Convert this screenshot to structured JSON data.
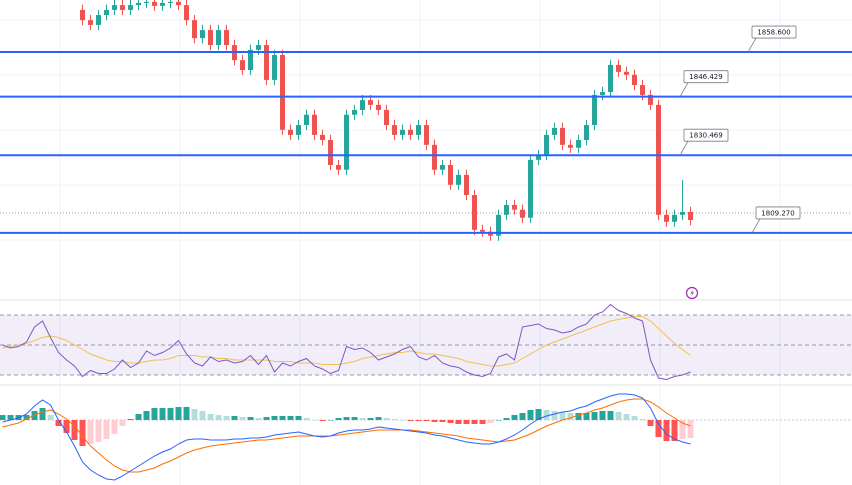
{
  "chart_data": {
    "type": "candlestick",
    "open": [
      null,
      null,
      null,
      null,
      null,
      null,
      null,
      null,
      null,
      null,
      1870.1,
      1867.3,
      1866.0,
      1868.7,
      1870.1,
      1871.4,
      1870.1,
      1871.4,
      1872.0,
      1872.3,
      1871.2,
      1872.0,
      1872.3,
      1871.4,
      1867.3,
      1862.4,
      1864.6,
      1860.5,
      1864.6,
      1860.5,
      1856.4,
      1853.7,
      1859.2,
      1860.5,
      1851.0,
      1857.8,
      1837.4,
      1836.0,
      1838.7,
      1841.5,
      1836.0,
      1834.6,
      1827.8,
      1826.5,
      1841.5,
      1842.8,
      1845.5,
      1844.2,
      1842.8,
      1838.7,
      1836.0,
      1837.4,
      1836.0,
      1838.7,
      1833.3,
      1826.5,
      1827.8,
      1822.4,
      1825.1,
      1819.6,
      1810.1,
      1809.6,
      1808.5,
      1814.2,
      1816.9,
      1815.6,
      1813.4,
      1829.2,
      1830.5,
      1836.0,
      1837.9,
      1833.3,
      1832.5,
      1834.6,
      1838.7,
      1846.9,
      1847.7,
      1855.1,
      1853.2,
      1852.4,
      1849.6,
      1846.9,
      1844.2,
      1814.2,
      1812.3,
      1814.2,
      1815.0
    ],
    "high": [
      null,
      null,
      null,
      null,
      null,
      null,
      null,
      null,
      null,
      null,
      1871.5,
      1868.7,
      1870.1,
      1871.5,
      1872.8,
      1872.8,
      1872.8,
      1873.4,
      1873.7,
      1873.7,
      1873.4,
      1873.7,
      1873.7,
      1872.8,
      1868.7,
      1866.0,
      1866.0,
      1866.0,
      1866.0,
      1861.9,
      1857.8,
      1860.6,
      1861.9,
      1861.9,
      1859.2,
      1859.2,
      1838.8,
      1840.1,
      1842.9,
      1842.9,
      1837.4,
      1836.0,
      1829.2,
      1842.9,
      1844.2,
      1846.9,
      1846.9,
      1845.6,
      1844.2,
      1840.1,
      1838.8,
      1838.8,
      1840.1,
      1840.1,
      1834.7,
      1829.2,
      1829.2,
      1826.5,
      1826.5,
      1821.0,
      1811.5,
      1811.0,
      1815.6,
      1818.3,
      1818.3,
      1817.0,
      1830.6,
      1831.9,
      1837.4,
      1839.3,
      1839.3,
      1834.7,
      1836.0,
      1840.1,
      1848.3,
      1849.1,
      1856.5,
      1856.5,
      1854.6,
      1853.8,
      1851.0,
      1848.3,
      1845.6,
      1815.6,
      1815.6,
      1823.7,
      1816.4
    ],
    "low": [
      null,
      null,
      null,
      null,
      null,
      null,
      null,
      null,
      null,
      null,
      1865.9,
      1864.6,
      1864.6,
      1867.3,
      1868.7,
      1868.7,
      1868.7,
      1870.0,
      1870.6,
      1869.8,
      1869.8,
      1870.6,
      1870.0,
      1865.9,
      1861.0,
      1861.0,
      1859.1,
      1859.1,
      1859.1,
      1855.0,
      1852.3,
      1852.3,
      1857.8,
      1849.6,
      1849.6,
      1836.0,
      1834.6,
      1834.6,
      1837.3,
      1834.6,
      1833.2,
      1826.4,
      1825.1,
      1825.1,
      1840.1,
      1841.4,
      1842.8,
      1841.4,
      1837.3,
      1834.6,
      1834.6,
      1834.6,
      1834.6,
      1831.9,
      1825.1,
      1825.1,
      1821.0,
      1821.0,
      1818.2,
      1808.7,
      1808.2,
      1807.1,
      1807.1,
      1812.8,
      1814.2,
      1812.0,
      1812.0,
      1827.8,
      1829.1,
      1834.6,
      1831.9,
      1831.1,
      1831.1,
      1833.2,
      1837.3,
      1845.5,
      1846.3,
      1851.8,
      1851.0,
      1848.2,
      1845.5,
      1842.8,
      1812.8,
      1810.9,
      1810.9,
      1812.8,
      1811.4
    ],
    "close": [
      null,
      null,
      null,
      null,
      null,
      null,
      null,
      null,
      null,
      null,
      1867.3,
      1866.0,
      1868.7,
      1870.1,
      1871.4,
      1870.1,
      1871.4,
      1872.0,
      1872.3,
      1871.2,
      1872.0,
      1872.3,
      1871.4,
      1867.3,
      1862.4,
      1864.6,
      1860.5,
      1864.6,
      1860.5,
      1856.4,
      1853.7,
      1859.2,
      1860.5,
      1851.0,
      1857.8,
      1837.4,
      1836.0,
      1838.7,
      1841.5,
      1836.0,
      1834.6,
      1827.8,
      1826.5,
      1841.5,
      1842.8,
      1845.5,
      1844.2,
      1842.8,
      1838.7,
      1836.0,
      1837.4,
      1836.0,
      1838.7,
      1833.3,
      1826.5,
      1827.8,
      1822.4,
      1825.1,
      1819.6,
      1810.1,
      1809.6,
      1808.5,
      1814.2,
      1816.9,
      1815.6,
      1813.4,
      1829.2,
      1830.5,
      1836.0,
      1837.9,
      1833.3,
      1832.5,
      1834.6,
      1838.7,
      1846.9,
      1847.7,
      1855.1,
      1853.2,
      1852.4,
      1849.6,
      1846.9,
      1844.2,
      1814.2,
      1812.3,
      1814.2,
      1815.0,
      1812.8
    ],
    "up_color": "#26a69a",
    "down_color": "#ef5350",
    "ylim": [
      1793.7,
      1872.8
    ],
    "levels": [
      {
        "value": 1858.6,
        "label": "1858.600"
      },
      {
        "value": 1846.429,
        "label": "1846.429"
      },
      {
        "value": 1830.469,
        "label": "1830.469"
      },
      {
        "value": 1809.27,
        "label": "1809.270"
      }
    ],
    "level_color": "#2962ff",
    "price_line": 1814.7,
    "rsi": {
      "values": [
        50,
        48,
        49,
        52,
        62,
        66,
        55,
        45,
        40,
        36,
        29,
        33,
        31,
        31,
        34,
        40,
        35,
        38,
        46,
        43,
        45,
        48,
        53,
        44,
        38,
        36,
        42,
        39,
        40,
        38,
        39,
        43,
        37,
        43,
        32,
        38,
        36,
        39,
        41,
        36,
        34,
        31,
        33,
        49,
        47,
        48,
        45,
        40,
        42,
        44,
        47,
        49,
        42,
        40,
        43,
        38,
        36,
        35,
        32,
        30,
        29,
        31,
        42,
        44,
        40,
        62,
        63,
        64,
        61,
        60,
        58,
        59,
        62,
        64,
        70,
        72,
        77,
        73,
        71,
        68,
        66,
        40,
        28,
        27,
        29,
        30,
        32
      ],
      "ma": [
        48,
        49,
        50,
        51,
        53,
        55,
        56,
        55,
        53,
        50,
        47,
        44,
        42,
        40,
        39,
        39,
        38,
        38,
        39,
        40,
        40,
        41,
        43,
        43,
        43,
        42,
        42,
        41,
        41,
        40,
        40,
        40,
        40,
        40,
        39,
        39,
        39,
        38,
        38,
        38,
        37,
        37,
        37,
        38,
        39,
        41,
        42,
        43,
        44,
        45,
        45,
        46,
        45,
        44,
        44,
        43,
        42,
        41,
        39,
        38,
        37,
        36,
        36,
        37,
        38,
        41,
        44,
        47,
        50,
        52,
        54,
        56,
        58,
        60,
        62,
        64,
        66,
        67,
        68,
        69,
        69,
        66,
        61,
        56,
        51,
        47,
        43
      ],
      "color": "#7e57c2",
      "ma_color": "#f2c14e",
      "ylim": [
        20,
        80
      ],
      "bands": [
        30,
        50,
        70
      ]
    },
    "macd": {
      "line": [
        -0.2,
        0,
        0.2,
        0.6,
        1.4,
        2.0,
        1.5,
        0,
        -1.2,
        -2.6,
        -4.2,
        -5.0,
        -5.5,
        -5.9,
        -6.0,
        -5.6,
        -5.1,
        -4.6,
        -4.1,
        -3.6,
        -3.2,
        -2.9,
        -2.4,
        -2.0,
        -1.9,
        -1.9,
        -2.0,
        -2.0,
        -2.0,
        -1.9,
        -1.9,
        -1.8,
        -1.8,
        -1.7,
        -1.5,
        -1.4,
        -1.3,
        -1.2,
        -1.4,
        -1.6,
        -1.7,
        -1.6,
        -1.3,
        -1.1,
        -1.0,
        -1.0,
        -0.9,
        -0.7,
        -0.8,
        -0.9,
        -1.0,
        -1.1,
        -1.2,
        -1.3,
        -1.5,
        -1.6,
        -1.8,
        -2.0,
        -2.2,
        -2.3,
        -2.4,
        -2.4,
        -2.2,
        -1.9,
        -1.5,
        -1.0,
        -0.4,
        0.1,
        0.4,
        0.6,
        0.8,
        0.9,
        1.2,
        1.4,
        1.8,
        2.1,
        2.4,
        2.6,
        2.6,
        2.5,
        2.2,
        1.2,
        -0.4,
        -1.4,
        -1.9,
        -2.2,
        -2.4
      ],
      "signal": [
        -0.7,
        -0.5,
        -0.3,
        0.1,
        0.5,
        0.8,
        1.0,
        0.6,
        0.1,
        -0.6,
        -1.6,
        -2.6,
        -3.3,
        -4.0,
        -4.6,
        -5.0,
        -5.2,
        -5.2,
        -5.0,
        -4.8,
        -4.4,
        -4.1,
        -3.7,
        -3.3,
        -3.0,
        -2.8,
        -2.6,
        -2.5,
        -2.4,
        -2.3,
        -2.2,
        -2.1,
        -2.0,
        -2.0,
        -1.9,
        -1.8,
        -1.7,
        -1.6,
        -1.6,
        -1.6,
        -1.6,
        -1.6,
        -1.5,
        -1.4,
        -1.3,
        -1.2,
        -1.1,
        -1.0,
        -1.0,
        -1.0,
        -1.0,
        -1.0,
        -1.1,
        -1.2,
        -1.3,
        -1.4,
        -1.5,
        -1.6,
        -1.8,
        -1.9,
        -2.0,
        -2.1,
        -2.2,
        -2.1,
        -2.0,
        -1.7,
        -1.4,
        -1.0,
        -0.6,
        -0.3,
        0.0,
        0.2,
        0.5,
        0.7,
        1.0,
        1.2,
        1.5,
        1.8,
        2.0,
        2.1,
        2.1,
        1.8,
        1.3,
        0.7,
        0.2,
        -0.3,
        -0.6
      ],
      "histogram": [
        0.5,
        0.5,
        0.5,
        0.5,
        0.9,
        1.2,
        0.5,
        -0.6,
        -1.3,
        -2.0,
        -2.6,
        -2.4,
        -2.2,
        -1.9,
        -1.4,
        -0.6,
        0.1,
        0.6,
        0.9,
        1.2,
        1.2,
        1.2,
        1.3,
        1.3,
        1.1,
        0.9,
        0.6,
        0.5,
        0.4,
        0.4,
        0.3,
        0.3,
        0.2,
        0.3,
        0.4,
        0.4,
        0.4,
        0.4,
        0.2,
        0.0,
        -0.1,
        0.0,
        0.2,
        0.3,
        0.3,
        0.2,
        0.2,
        0.3,
        0.2,
        0.1,
        0.0,
        -0.1,
        -0.1,
        -0.1,
        -0.2,
        -0.2,
        -0.3,
        -0.4,
        -0.4,
        -0.4,
        -0.4,
        -0.3,
        0,
        0.2,
        0.5,
        0.7,
        1.0,
        1.1,
        1.0,
        0.9,
        0.8,
        0.7,
        0.7,
        0.7,
        0.8,
        0.9,
        0.9,
        0.8,
        0.6,
        0.4,
        0.1,
        -0.6,
        -1.7,
        -2.1,
        -2.1,
        -1.9,
        -1.8
      ],
      "line_color": "#2962ff",
      "signal_color": "#ff6d00",
      "ylim": [
        -6.5,
        3.5
      ]
    }
  }
}
